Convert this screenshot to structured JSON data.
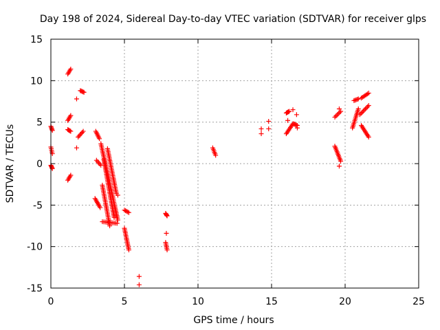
{
  "chart_data": {
    "type": "scatter",
    "title": "Day 198 of 2024, Sidereal Day-to-day VTEC variation (SDTVAR) for receiver glps",
    "xlabel": "GPS time / hours",
    "ylabel": "SDTVAR / TECUs",
    "xlim": [
      0,
      25
    ],
    "ylim": [
      -15,
      15
    ],
    "xticks": [
      0,
      5,
      10,
      15,
      20,
      25
    ],
    "yticks": [
      -15,
      -10,
      -5,
      0,
      5,
      10,
      15
    ],
    "grid": true,
    "marker": "+",
    "color": "#ff0000",
    "segments": [
      {
        "t0": 0.0,
        "v0": 4.5,
        "t1": 0.1,
        "v1": 4.0
      },
      {
        "t0": 0.0,
        "v0": 2.0,
        "t1": 0.1,
        "v1": 1.2
      },
      {
        "t0": 0.0,
        "v0": -0.2,
        "t1": 0.1,
        "v1": -0.6
      },
      {
        "t0": 1.15,
        "v0": 10.8,
        "t1": 1.35,
        "v1": 11.4
      },
      {
        "t0": 1.15,
        "v0": 5.2,
        "t1": 1.35,
        "v1": 5.8
      },
      {
        "t0": 1.15,
        "v0": 4.1,
        "t1": 1.35,
        "v1": 3.9
      },
      {
        "t0": 1.15,
        "v0": -2.0,
        "t1": 1.35,
        "v1": -1.4
      },
      {
        "t0": 1.85,
        "v0": 3.2,
        "t1": 2.2,
        "v1": 3.9
      },
      {
        "t0": 2.0,
        "v0": 8.8,
        "t1": 2.25,
        "v1": 8.6
      },
      {
        "t0": 3.05,
        "v0": 3.9,
        "t1": 3.3,
        "v1": 3.0
      },
      {
        "t0": 3.1,
        "v0": 0.4,
        "t1": 3.4,
        "v1": -0.2
      },
      {
        "t0": 3.0,
        "v0": -4.2,
        "t1": 3.35,
        "v1": -5.3
      },
      {
        "t0": 3.4,
        "v0": 2.4,
        "t1": 4.55,
        "v1": -6.8
      },
      {
        "t0": 3.5,
        "v0": -2.6,
        "t1": 4.0,
        "v1": -7.5
      },
      {
        "t0": 3.5,
        "v0": -7.0,
        "t1": 4.5,
        "v1": -7.2
      },
      {
        "t0": 3.85,
        "v0": 1.8,
        "t1": 4.45,
        "v1": -3.6
      },
      {
        "t0": 3.6,
        "v0": 0.5,
        "t1": 4.3,
        "v1": -6.5
      },
      {
        "t0": 5.0,
        "v0": -7.8,
        "t1": 5.3,
        "v1": -10.4
      },
      {
        "t0": 5.0,
        "v0": -5.6,
        "t1": 5.3,
        "v1": -5.9
      },
      {
        "t0": 7.8,
        "v0": -6.0,
        "t1": 7.9,
        "v1": -6.3
      },
      {
        "t0": 7.8,
        "v0": -9.5,
        "t1": 7.9,
        "v1": -10.4
      },
      {
        "t0": 11.0,
        "v0": 1.9,
        "t1": 11.2,
        "v1": 1.0
      },
      {
        "t0": 16.0,
        "v0": 3.6,
        "t1": 16.45,
        "v1": 4.8
      },
      {
        "t0": 16.0,
        "v0": 6.1,
        "t1": 16.2,
        "v1": 6.3
      },
      {
        "t0": 16.5,
        "v0": 4.8,
        "t1": 16.75,
        "v1": 4.6
      },
      {
        "t0": 19.3,
        "v0": 5.6,
        "t1": 19.7,
        "v1": 6.3
      },
      {
        "t0": 19.3,
        "v0": 2.1,
        "t1": 19.7,
        "v1": 0.3
      },
      {
        "t0": 20.5,
        "v0": 4.3,
        "t1": 20.9,
        "v1": 6.6
      },
      {
        "t0": 20.6,
        "v0": 7.6,
        "t1": 20.9,
        "v1": 7.8
      },
      {
        "t0": 21.0,
        "v0": 5.9,
        "t1": 21.6,
        "v1": 7.0
      },
      {
        "t0": 21.1,
        "v0": 7.9,
        "t1": 21.6,
        "v1": 8.5
      },
      {
        "t0": 21.1,
        "v0": 4.6,
        "t1": 21.6,
        "v1": 3.2
      }
    ],
    "points": [
      {
        "t": 1.75,
        "v": 7.8
      },
      {
        "t": 1.75,
        "v": 1.9
      },
      {
        "t": 4.55,
        "v": -3.8
      },
      {
        "t": 6.0,
        "v": -13.6
      },
      {
        "t": 6.0,
        "v": -14.6
      },
      {
        "t": 7.85,
        "v": -8.4
      },
      {
        "t": 14.3,
        "v": 4.2
      },
      {
        "t": 14.3,
        "v": 3.6
      },
      {
        "t": 14.8,
        "v": 5.1
      },
      {
        "t": 14.8,
        "v": 4.2
      },
      {
        "t": 16.1,
        "v": 5.2
      },
      {
        "t": 16.45,
        "v": 6.5
      },
      {
        "t": 16.7,
        "v": 5.9
      },
      {
        "t": 16.75,
        "v": 4.3
      },
      {
        "t": 19.6,
        "v": -0.3
      },
      {
        "t": 19.6,
        "v": 6.6
      }
    ]
  }
}
